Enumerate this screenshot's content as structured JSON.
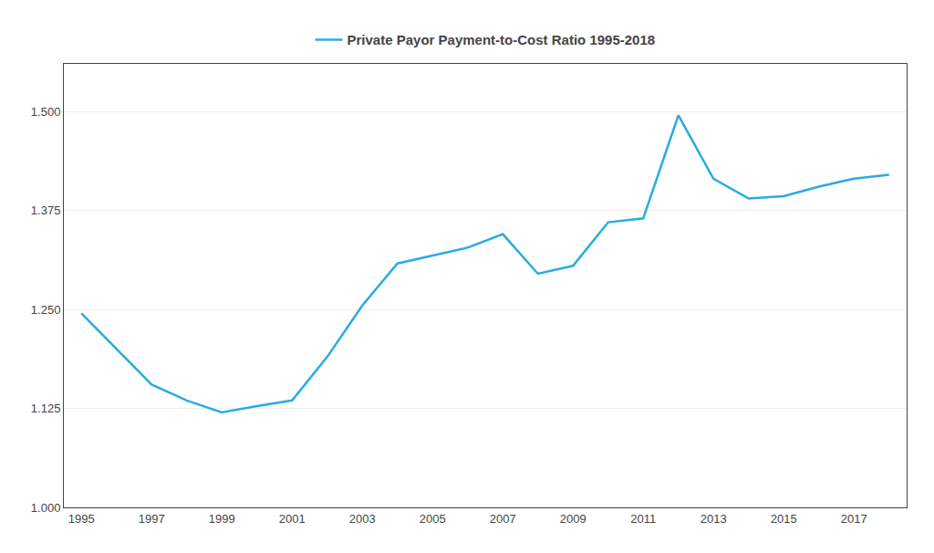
{
  "chart_data": {
    "type": "line",
    "x": [
      1995,
      1996,
      1997,
      1998,
      1999,
      2000,
      2001,
      2002,
      2003,
      2004,
      2005,
      2006,
      2007,
      2008,
      2009,
      2010,
      2011,
      2012,
      2013,
      2014,
      2015,
      2016,
      2017,
      2018
    ],
    "series": [
      {
        "name": "Private Payor Payment-to-Cost Ratio 1995-2018",
        "color": "#29ABE2",
        "values": [
          1.245,
          1.2,
          1.155,
          1.135,
          1.12,
          1.128,
          1.135,
          1.19,
          1.255,
          1.308,
          1.318,
          1.328,
          1.345,
          1.295,
          1.305,
          1.36,
          1.365,
          1.495,
          1.415,
          1.39,
          1.393,
          1.405,
          1.415,
          1.42
        ]
      }
    ],
    "xlim": [
      1994.5,
      2018.5
    ],
    "ylim": [
      1.0,
      1.56
    ],
    "xticks": [
      1995,
      1997,
      1999,
      2001,
      2003,
      2005,
      2007,
      2009,
      2011,
      2013,
      2015,
      2017
    ],
    "yticks": [
      {
        "value": 1.0,
        "label": "1.000"
      },
      1.125,
      {
        "value": 1.25,
        "label": "1.250"
      },
      1.375,
      {
        "value": 1.5,
        "label": "1.500"
      }
    ],
    "grid": "y",
    "legend": "top"
  }
}
